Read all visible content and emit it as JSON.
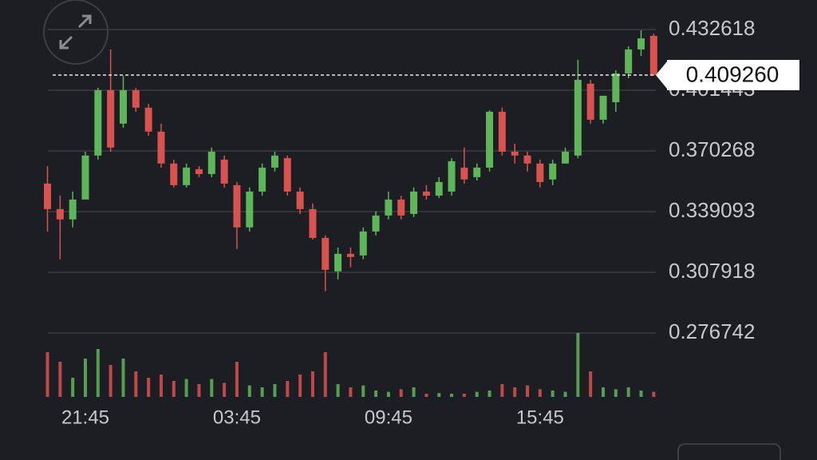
{
  "chart_data": {
    "type": "candlestick",
    "categories": [
      null,
      null,
      null,
      "21:45",
      null,
      null,
      null,
      null,
      null,
      null,
      null,
      null,
      null,
      null,
      null,
      "03:45",
      null,
      null,
      null,
      null,
      null,
      null,
      null,
      null,
      null,
      null,
      null,
      "09:45",
      null,
      null,
      null,
      null,
      null,
      null,
      null,
      null,
      null,
      null,
      null,
      "15:45",
      null,
      null,
      null,
      null,
      null,
      null,
      null,
      null,
      null
    ],
    "open": [
      0.3535,
      0.3404,
      0.3351,
      0.3453,
      0.3679,
      0.4015,
      0.3843,
      0.4015,
      0.3925,
      0.3802,
      0.3638,
      0.3527,
      0.3609,
      0.3584,
      0.3658,
      0.3527,
      0.331,
      0.3494,
      0.3617,
      0.3666,
      0.3494,
      0.3404,
      0.3256,
      0.3084,
      0.3174,
      0.3166,
      0.3289,
      0.3371,
      0.3453,
      0.3379,
      0.3494,
      0.3473,
      0.3494,
      0.3617,
      0.3568,
      0.3617,
      0.3904,
      0.3699,
      0.3679,
      0.3638,
      0.3556,
      0.3638,
      0.3679,
      0.4048,
      0.3863,
      0.3953,
      0.4101,
      0.4224,
      0.4294
    ],
    "high": [
      0.3625,
      0.3473,
      0.3494,
      0.3699,
      0.4027,
      0.4224,
      0.4089,
      0.4027,
      0.3945,
      0.3843,
      0.3658,
      0.3638,
      0.3625,
      0.372,
      0.3679,
      0.3543,
      0.3515,
      0.3638,
      0.3699,
      0.3679,
      0.3515,
      0.3433,
      0.3269,
      0.3207,
      0.3207,
      0.331,
      0.3392,
      0.3494,
      0.3473,
      0.3515,
      0.3527,
      0.3568,
      0.3666,
      0.372,
      0.3638,
      0.3912,
      0.3925,
      0.374,
      0.3699,
      0.3658,
      0.3658,
      0.372,
      0.4171,
      0.4068,
      0.3986,
      0.4117,
      0.424,
      0.4322,
      0.4306
    ],
    "low": [
      0.3289,
      0.3146,
      0.331,
      0.3453,
      0.3658,
      0.3699,
      0.3822,
      0.3904,
      0.3781,
      0.3617,
      0.3515,
      0.3515,
      0.3568,
      0.3568,
      0.3515,
      0.3199,
      0.3289,
      0.3473,
      0.3597,
      0.3473,
      0.3379,
      0.3248,
      0.2982,
      0.3043,
      0.3105,
      0.3146,
      0.3269,
      0.3351,
      0.3351,
      0.3363,
      0.3453,
      0.3461,
      0.3473,
      0.3535,
      0.3551,
      0.3597,
      0.3679,
      0.3638,
      0.3597,
      0.3515,
      0.3527,
      0.3638,
      0.3666,
      0.3843,
      0.3843,
      0.3904,
      0.4076,
      0.4191,
      0.4089
    ],
    "close": [
      0.3404,
      0.3351,
      0.3453,
      0.3679,
      0.4015,
      0.372,
      0.4015,
      0.3925,
      0.3802,
      0.3638,
      0.3527,
      0.3617,
      0.3584,
      0.3699,
      0.3535,
      0.331,
      0.3494,
      0.3617,
      0.3679,
      0.3494,
      0.3404,
      0.3256,
      0.3092,
      0.3174,
      0.3158,
      0.3289,
      0.3371,
      0.3453,
      0.3371,
      0.3494,
      0.3473,
      0.3543,
      0.365,
      0.3556,
      0.3617,
      0.3904,
      0.3699,
      0.3679,
      0.3638,
      0.3543,
      0.3638,
      0.3699,
      0.4068,
      0.3863,
      0.3986,
      0.4101,
      0.4224,
      0.4281,
      0.40926
    ],
    "volume": [
      70,
      55,
      30,
      60,
      75,
      50,
      60,
      40,
      30,
      35,
      25,
      28,
      20,
      28,
      22,
      55,
      18,
      15,
      20,
      25,
      35,
      40,
      70,
      20,
      15,
      18,
      10,
      8,
      12,
      15,
      5,
      6,
      5,
      5,
      8,
      10,
      20,
      15,
      18,
      12,
      10,
      8,
      100,
      40,
      15,
      12,
      15,
      10,
      8
    ],
    "volume_lim": [
      0,
      100
    ],
    "up_color": "#5fb55a",
    "down_color": "#d8534f",
    "ylim": [
      0.276742,
      0.432618
    ],
    "yticks": [
      0.432618,
      0.401443,
      0.370268,
      0.339093,
      0.307918,
      0.276742
    ],
    "grid": true,
    "last_price": {
      "value": 0.40926,
      "label": "0.409260"
    }
  }
}
